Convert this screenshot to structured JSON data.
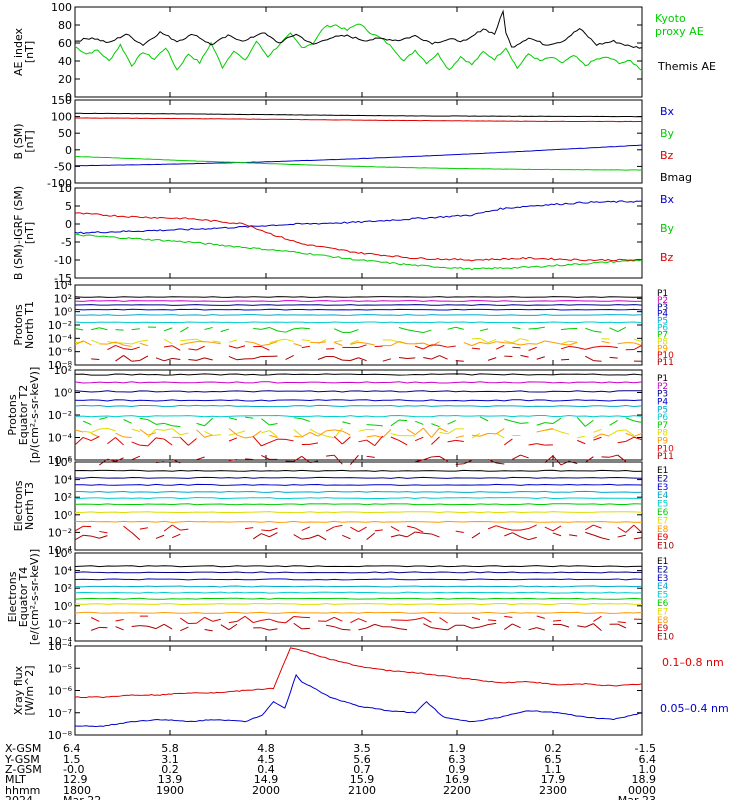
{
  "colors": {
    "black": "#000000",
    "red": "#dd0000",
    "green": "#00cc00",
    "blue": "#0000cc",
    "magenta": "#cc00cc",
    "navy": "#000088",
    "purple": "#7a00aa",
    "cyan": "#00cccc",
    "teal": "#009999",
    "yellow": "#dddd00",
    "orange": "#ff9900",
    "darkred": "#aa0000"
  },
  "chart_data": [
    {
      "type": "line",
      "id": "ae",
      "ylabel": [
        "AE index",
        "[nT]"
      ],
      "ylim": [
        0,
        100
      ],
      "ticks": [
        {
          "v": 0,
          "t": "0"
        },
        {
          "v": 20,
          "t": "20"
        },
        {
          "v": 40,
          "t": "40"
        },
        {
          "v": 60,
          "t": "60"
        },
        {
          "v": 80,
          "t": "80"
        },
        {
          "v": 100,
          "t": "100"
        }
      ],
      "series": [
        {
          "name": "Kyoto proxy AE",
          "color": "#00cc00",
          "x": [
            0,
            0.02,
            0.04,
            0.06,
            0.08,
            0.1,
            0.12,
            0.14,
            0.16,
            0.18,
            0.2,
            0.22,
            0.24,
            0.26,
            0.28,
            0.3,
            0.32,
            0.34,
            0.36,
            0.38,
            0.4,
            0.42,
            0.44,
            0.46,
            0.48,
            0.5,
            0.52,
            0.54,
            0.56,
            0.58,
            0.6,
            0.62,
            0.64,
            0.66,
            0.68,
            0.7,
            0.72,
            0.74,
            0.76,
            0.78,
            0.8,
            0.82,
            0.84,
            0.86,
            0.88,
            0.9,
            0.92,
            0.94,
            0.96,
            0.98,
            1
          ],
          "y": [
            56,
            48,
            52,
            40,
            58,
            35,
            50,
            42,
            55,
            30,
            48,
            38,
            60,
            33,
            52,
            40,
            62,
            45,
            58,
            70,
            55,
            60,
            78,
            80,
            74,
            82,
            72,
            65,
            55,
            40,
            52,
            38,
            48,
            30,
            45,
            36,
            50,
            42,
            55,
            32,
            48,
            40,
            44,
            38,
            46,
            35,
            42,
            44,
            38,
            40,
            30
          ],
          "labels": [
            "Kyoto",
            "proxy AE"
          ]
        },
        {
          "name": "Themis AE",
          "color": "#000000",
          "x": [
            0,
            0.03,
            0.06,
            0.09,
            0.12,
            0.15,
            0.18,
            0.21,
            0.24,
            0.27,
            0.3,
            0.33,
            0.36,
            0.39,
            0.42,
            0.45,
            0.48,
            0.51,
            0.54,
            0.57,
            0.6,
            0.63,
            0.66,
            0.69,
            0.72,
            0.74,
            0.755,
            0.76,
            0.77,
            0.8,
            0.83,
            0.86,
            0.89,
            0.92,
            0.95,
            0.98,
            1
          ],
          "y": [
            62,
            66,
            60,
            70,
            58,
            72,
            62,
            70,
            58,
            68,
            62,
            72,
            60,
            70,
            58,
            66,
            68,
            63,
            65,
            63,
            68,
            60,
            64,
            62,
            76,
            70,
            95,
            72,
            55,
            66,
            58,
            62,
            76,
            58,
            62,
            56,
            55
          ],
          "labels": [
            "Themis AE"
          ]
        }
      ]
    },
    {
      "type": "line",
      "id": "bsm",
      "ylabel": [
        "B (SM)",
        "[nT]"
      ],
      "ylim": [
        -100,
        150
      ],
      "ticks": [
        {
          "v": -100,
          "t": "-100"
        },
        {
          "v": -50,
          "t": "-50"
        },
        {
          "v": 0,
          "t": "0"
        },
        {
          "v": 50,
          "t": "50"
        },
        {
          "v": 100,
          "t": "100"
        },
        {
          "v": 150,
          "t": "150"
        }
      ],
      "series": [
        {
          "name": "Bx",
          "color": "#0000cc",
          "x": [
            0,
            0.15,
            0.3,
            0.45,
            0.6,
            0.75,
            0.9,
            1
          ],
          "y": [
            -48,
            -44,
            -38,
            -30,
            -20,
            -8,
            5,
            14
          ]
        },
        {
          "name": "By",
          "color": "#00cc00",
          "x": [
            0,
            0.1,
            0.2,
            0.3,
            0.4,
            0.5,
            0.6,
            0.7,
            0.8,
            0.9,
            1
          ],
          "y": [
            -20,
            -26,
            -33,
            -39,
            -45,
            -50,
            -54,
            -57,
            -59,
            -60,
            -61
          ]
        },
        {
          "name": "Bz",
          "color": "#dd0000",
          "x": [
            0,
            0.2,
            0.4,
            0.6,
            0.8,
            1
          ],
          "y": [
            96,
            94,
            91,
            88,
            86,
            85
          ]
        },
        {
          "name": "Bmag",
          "color": "#000000",
          "x": [
            0,
            0.2,
            0.4,
            0.6,
            0.8,
            1
          ],
          "y": [
            110,
            108,
            105,
            102,
            101,
            100
          ]
        }
      ]
    },
    {
      "type": "line",
      "id": "bigrf",
      "ylabel": [
        "B (SM)-IGRF (SM)",
        "[nT]"
      ],
      "ylim": [
        -15,
        10
      ],
      "ticks": [
        {
          "v": -15,
          "t": "-15"
        },
        {
          "v": -10,
          "t": "-10"
        },
        {
          "v": -5,
          "t": "-5"
        },
        {
          "v": 0,
          "t": "0"
        },
        {
          "v": 5,
          "t": "5"
        },
        {
          "v": 10,
          "t": "10"
        }
      ],
      "series": [
        {
          "name": "Bx",
          "color": "#0000cc",
          "x": [
            0,
            0.1,
            0.2,
            0.3,
            0.35,
            0.4,
            0.5,
            0.6,
            0.7,
            0.75,
            0.8,
            0.9,
            1
          ],
          "y": [
            -2.5,
            -2,
            -1.5,
            -0.8,
            -0.3,
            0,
            0.5,
            1.5,
            2.5,
            4.2,
            5,
            6,
            6.3
          ]
        },
        {
          "name": "By",
          "color": "#00cc00",
          "x": [
            0,
            0.1,
            0.2,
            0.3,
            0.4,
            0.5,
            0.6,
            0.7,
            0.8,
            0.9,
            1
          ],
          "y": [
            -3,
            -4,
            -5,
            -6.5,
            -8,
            -10,
            -11.5,
            -12.5,
            -12,
            -11,
            -10
          ]
        },
        {
          "name": "Bz",
          "color": "#dd0000",
          "x": [
            0,
            0.1,
            0.2,
            0.3,
            0.35,
            0.4,
            0.5,
            0.6,
            0.7,
            0.8,
            0.9,
            1
          ],
          "y": [
            3,
            2,
            1.5,
            0,
            -3,
            -5.5,
            -8,
            -9.5,
            -10,
            -9.5,
            -10,
            -10
          ]
        }
      ]
    },
    {
      "type": "line",
      "id": "pn",
      "log": true,
      "ylabel": [
        "Protons",
        "North T1"
      ],
      "ylim": [
        -8,
        4
      ],
      "ticks": [
        {
          "v": -8,
          "t": "10⁻⁸"
        },
        {
          "v": -6,
          "t": "10⁻⁶"
        },
        {
          "v": -4,
          "t": "10⁻⁴"
        },
        {
          "v": -2,
          "t": "10⁻²"
        },
        {
          "v": 0,
          "t": "10⁰"
        },
        {
          "v": 2,
          "t": "10²"
        },
        {
          "v": 4,
          "t": "10⁴"
        }
      ],
      "series": [
        {
          "name": "P1",
          "color": "#000000",
          "level": 2.2
        },
        {
          "name": "P2",
          "color": "#cc00cc",
          "level": 1.6
        },
        {
          "name": "P3",
          "color": "#000088",
          "level": 1.0
        },
        {
          "name": "P4",
          "color": "#0000cc",
          "level": 0.3
        },
        {
          "name": "P5",
          "color": "#00aacc",
          "level": -0.5
        },
        {
          "name": "P6",
          "color": "#00cccc",
          "level": -1.6
        },
        {
          "name": "P7",
          "color": "#00cc00",
          "level": -2.7,
          "dashed": true
        },
        {
          "name": "P8",
          "color": "#dddd00",
          "level": -4.4,
          "dashed": true
        },
        {
          "name": "P9",
          "color": "#ff9900",
          "level": -4.8,
          "dashed": true
        },
        {
          "name": "P10",
          "color": "#dd0000",
          "level": -5.4,
          "dashed": true
        },
        {
          "name": "P11",
          "color": "#aa0000",
          "level": -7.0,
          "dashed": true
        }
      ]
    },
    {
      "type": "line",
      "id": "pe",
      "log": true,
      "ylabel": [
        "Protons",
        "Equator T2",
        "[p/(cm²-s-sr-keV)]"
      ],
      "ylim": [
        -6,
        2
      ],
      "ticks": [
        {
          "v": -6,
          "t": "10⁻⁶"
        },
        {
          "v": -4,
          "t": "10⁻⁴"
        },
        {
          "v": -2,
          "t": "10⁻²"
        },
        {
          "v": 0,
          "t": "10⁰"
        },
        {
          "v": 2,
          "t": "10²"
        }
      ],
      "series": [
        {
          "name": "P1",
          "color": "#000000",
          "level": 1.6
        },
        {
          "name": "P2",
          "color": "#cc00cc",
          "level": 0.9
        },
        {
          "name": "P3",
          "color": "#000088",
          "level": 0.1
        },
        {
          "name": "P4",
          "color": "#0000cc",
          "level": -0.7
        },
        {
          "name": "P5",
          "color": "#00aacc",
          "level": -1.2
        },
        {
          "name": "P6",
          "color": "#00cccc",
          "level": -2.1
        },
        {
          "name": "P7",
          "color": "#00cc00",
          "level": -2.6,
          "dashed": true
        },
        {
          "name": "P8",
          "color": "#dddd00",
          "level": -3.6,
          "dashed": true
        },
        {
          "name": "P9",
          "color": "#ff9900",
          "level": -3.6,
          "dashed": true
        },
        {
          "name": "P10",
          "color": "#dd0000",
          "level": -4.3,
          "dashed": true
        },
        {
          "name": "P11",
          "color": "#aa0000",
          "level": -6,
          "dashed": true
        }
      ]
    },
    {
      "type": "line",
      "id": "en",
      "log": true,
      "ylabel": [
        "Electrons",
        "North T3"
      ],
      "ylim": [
        -4,
        6
      ],
      "ticks": [
        {
          "v": -4,
          "t": "10⁻⁴"
        },
        {
          "v": -2,
          "t": "10⁻²"
        },
        {
          "v": 0,
          "t": "10⁰"
        },
        {
          "v": 2,
          "t": "10²"
        },
        {
          "v": 4,
          "t": "10⁴"
        },
        {
          "v": 6,
          "t": "10⁶"
        }
      ],
      "series": [
        {
          "name": "E1",
          "color": "#000000",
          "level": 5.0
        },
        {
          "name": "E2",
          "color": "#000088",
          "level": 4.2
        },
        {
          "name": "E3",
          "color": "#0000cc",
          "level": 3.4
        },
        {
          "name": "E4",
          "color": "#00aacc",
          "level": 2.6
        },
        {
          "name": "E5",
          "color": "#00cccc",
          "level": 1.9
        },
        {
          "name": "E6",
          "color": "#00cc00",
          "level": 1.2
        },
        {
          "name": "E7",
          "color": "#dddd00",
          "level": 0.3
        },
        {
          "name": "E8",
          "color": "#ff9900",
          "level": -0.8
        },
        {
          "name": "E9",
          "color": "#dd0000",
          "level": -1.6,
          "dashed": true
        },
        {
          "name": "E10",
          "color": "#aa0000",
          "level": -2.4,
          "dashed": true
        }
      ]
    },
    {
      "type": "line",
      "id": "ee",
      "log": true,
      "ylabel": [
        "Electrons",
        "Equator T4",
        "[e/(cm²-s-sr-keV)]"
      ],
      "ylim": [
        -4,
        6
      ],
      "ticks": [
        {
          "v": -4,
          "t": "10⁻⁴"
        },
        {
          "v": -2,
          "t": "10⁻²"
        },
        {
          "v": 0,
          "t": "10⁰"
        },
        {
          "v": 2,
          "t": "10²"
        },
        {
          "v": 4,
          "t": "10⁴"
        },
        {
          "v": 6,
          "t": "10⁶"
        }
      ],
      "series": [
        {
          "name": "E1",
          "color": "#000000",
          "level": 4.5
        },
        {
          "name": "E2",
          "color": "#000088",
          "level": 3.8
        },
        {
          "name": "E3",
          "color": "#0000cc",
          "level": 3.0
        },
        {
          "name": "E4",
          "color": "#00aacc",
          "level": 2.2
        },
        {
          "name": "E5",
          "color": "#00cccc",
          "level": 1.5
        },
        {
          "name": "E6",
          "color": "#00cc00",
          "level": 0.8
        },
        {
          "name": "E7",
          "color": "#dddd00",
          "level": 0.2
        },
        {
          "name": "E8",
          "color": "#ff9900",
          "level": -0.8
        },
        {
          "name": "E9",
          "color": "#dd0000",
          "level": -1.6,
          "dashed": true
        },
        {
          "name": "E10",
          "color": "#aa0000",
          "level": -2.4,
          "dashed": true
        }
      ]
    },
    {
      "type": "line",
      "id": "xray",
      "log": true,
      "ylabel": [
        "Xray flux",
        "[W/m^2]"
      ],
      "ylim": [
        -8,
        -4
      ],
      "ticks": [
        {
          "v": -8,
          "t": "10⁻⁸"
        },
        {
          "v": -7,
          "t": "10⁻⁷"
        },
        {
          "v": -6,
          "t": "10⁻⁶"
        },
        {
          "v": -5,
          "t": "10⁻⁵"
        },
        {
          "v": -4,
          "t": "10⁻⁴"
        }
      ],
      "series": [
        {
          "name": "0.1-0.8 nm",
          "color": "#dd0000",
          "x": [
            0,
            0.05,
            0.1,
            0.15,
            0.2,
            0.25,
            0.3,
            0.35,
            0.38,
            0.4,
            0.45,
            0.5,
            0.55,
            0.6,
            0.65,
            0.7,
            0.75,
            0.8,
            0.85,
            0.9,
            0.95,
            1
          ],
          "y": [
            -6.3,
            -6.3,
            -6.2,
            -6.2,
            -6.1,
            -6.1,
            -6.0,
            -5.9,
            -4.1,
            -4.2,
            -4.6,
            -4.9,
            -5.1,
            -5.2,
            -5.35,
            -5.5,
            -5.65,
            -5.6,
            -5.75,
            -5.7,
            -5.8,
            -5.7
          ],
          "labels": [
            "0.1–0.8 nm"
          ]
        },
        {
          "name": "0.05-0.4 nm",
          "color": "#0000cc",
          "x": [
            0,
            0.05,
            0.1,
            0.15,
            0.2,
            0.25,
            0.3,
            0.33,
            0.35,
            0.37,
            0.39,
            0.4,
            0.45,
            0.5,
            0.55,
            0.6,
            0.62,
            0.65,
            0.7,
            0.75,
            0.8,
            0.85,
            0.9,
            0.95,
            1
          ],
          "y": [
            -7.6,
            -7.6,
            -7.4,
            -7.3,
            -7.4,
            -7.3,
            -7.4,
            -7.1,
            -6.5,
            -6.8,
            -5.3,
            -5.6,
            -6.3,
            -6.7,
            -6.9,
            -7.0,
            -6.5,
            -7.2,
            -7.4,
            -7.2,
            -6.9,
            -7.0,
            -7.2,
            -7.3,
            -7.0
          ],
          "labels": [
            "0.05–0.4 nm"
          ]
        }
      ]
    }
  ],
  "footer": {
    "labels": [
      "X-GSM",
      "Y-GSM",
      "Z-GSM",
      "MLT",
      "hhmm",
      "2024"
    ],
    "columns": [
      {
        "values": [
          "6.4",
          "1.5",
          "-0.0",
          "12.9",
          "1800",
          "Mar 22"
        ]
      },
      {
        "values": [
          "5.8",
          "3.1",
          "0.2",
          "13.9",
          "1900",
          ""
        ]
      },
      {
        "values": [
          "4.8",
          "4.5",
          "0.4",
          "14.9",
          "2000",
          ""
        ]
      },
      {
        "values": [
          "3.5",
          "5.6",
          "0.7",
          "15.9",
          "2100",
          ""
        ]
      },
      {
        "values": [
          "1.9",
          "6.3",
          "0.9",
          "16.9",
          "2200",
          ""
        ]
      },
      {
        "values": [
          "0.2",
          "6.5",
          "1.1",
          "17.9",
          "2300",
          ""
        ]
      },
      {
        "values": [
          "-1.5",
          "6.4",
          "1.0",
          "18.9",
          "0000",
          "Mar 23"
        ]
      }
    ]
  }
}
